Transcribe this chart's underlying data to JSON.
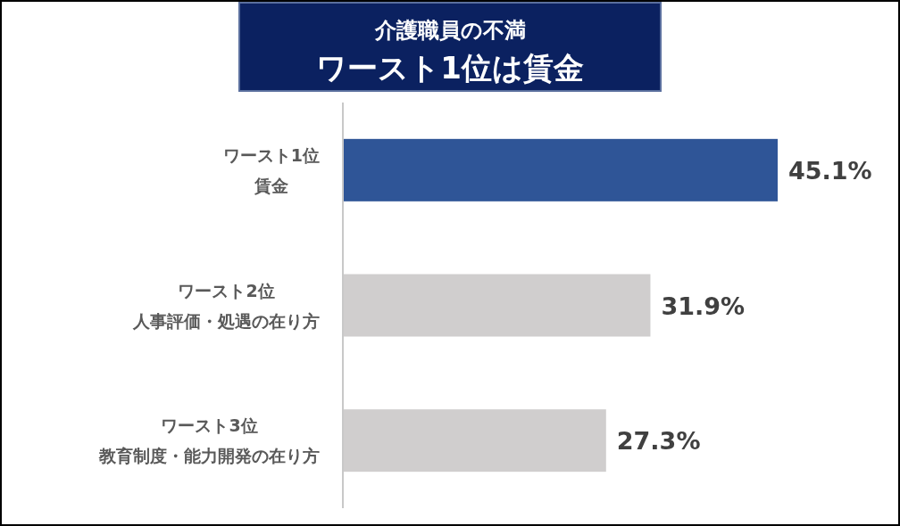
{
  "chart_data": {
    "type": "bar",
    "orientation": "horizontal",
    "title": "介護職員の不満",
    "subtitle": "ワースト1位は賃金",
    "categories": [
      "ワースト1位賃金",
      "ワースト2位人事評価・処遇の在り方",
      "ワースト3位教育制度・能力開発の在り方"
    ],
    "values": [
      45.1,
      31.9,
      27.3
    ],
    "colors": [
      "#2f5597",
      "#d0cece",
      "#d0cece"
    ],
    "value_labels": [
      "45.1%",
      "31.9%",
      "27.3%"
    ]
  }
}
